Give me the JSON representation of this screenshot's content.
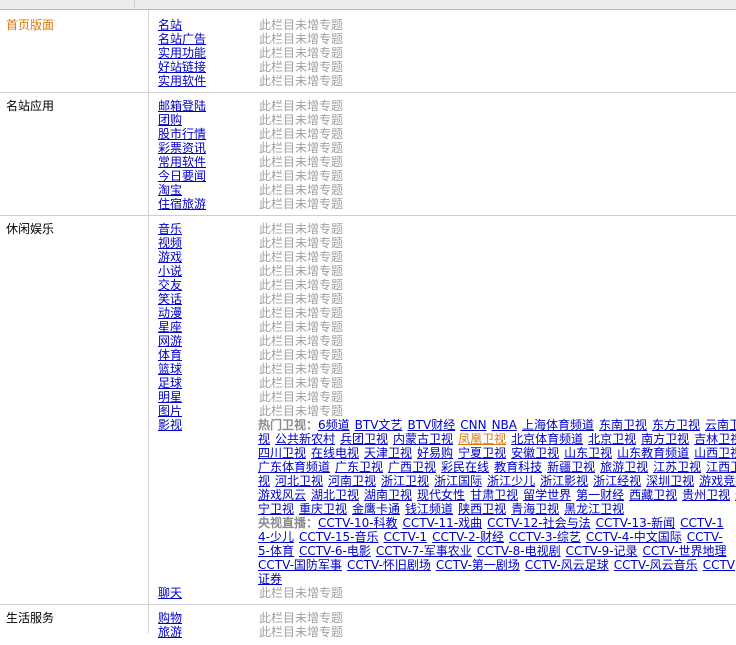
{
  "sections": [
    {
      "title": "首页版面",
      "links": [
        "名站",
        "名站广告",
        "实用功能",
        "好站链接",
        "实用软件"
      ],
      "status": "此栏目未增专题"
    },
    {
      "title": "名站应用",
      "links": [
        "邮箱登陆",
        "团购",
        "股市行情",
        "彩票资讯",
        "常用软件",
        "今日要闻",
        "淘宝",
        "住宿旅游"
      ],
      "status": "此栏目未增专题"
    },
    {
      "title": "休闲娱乐",
      "links": [
        "音乐",
        "视频",
        "游戏",
        "小说",
        "交友",
        "笑话",
        "动漫",
        "星座",
        "网游",
        "体育",
        "篮球",
        "足球",
        "明星",
        "图片",
        "影视"
      ],
      "status": "此栏目未增专题",
      "extra_link": "聊天",
      "extra_status": "此栏目未增专题"
    },
    {
      "title": "生活服务",
      "links": [
        "购物",
        "旅游"
      ],
      "status": "此栏目未增专题"
    }
  ],
  "tv_lines": [
    {
      "label": "热门卫视：",
      "links": [
        "6频道",
        "BTV文艺",
        "BTV财经",
        "CNN",
        "NBA",
        "上海体育频道",
        "东南卫视",
        "东方卫视",
        "云南卫"
      ]
    },
    {
      "label": "",
      "links": [
        "视",
        "公共新农村",
        "兵团卫视",
        "内蒙古卫视",
        "凤凰卫视",
        "北京体育频道",
        "北京卫视",
        "南方卫视",
        "吉林卫视"
      ]
    },
    {
      "label": "",
      "links": [
        "四川卫视",
        "在线电视",
        "天津卫视",
        "好易购",
        "宁夏卫视",
        "安徽卫视",
        "山东卫视",
        "山东教育频道",
        "山西卫视"
      ]
    },
    {
      "label": "",
      "links": [
        "广东体育频道",
        "广东卫视",
        "广西卫视",
        "彩民在线",
        "教育科技",
        "新疆卫视",
        "旅游卫视",
        "江苏卫视",
        "江西卫"
      ]
    },
    {
      "label": "",
      "links": [
        "视",
        "河北卫视",
        "河南卫视",
        "浙江卫视",
        "浙江国际",
        "浙江少儿",
        "浙江影视",
        "浙江经视",
        "深圳卫视",
        "游戏竞技"
      ]
    },
    {
      "label": "",
      "links": [
        "游戏风云",
        "湖北卫视",
        "湖南卫视",
        "现代女性",
        "甘肃卫视",
        "留学世界",
        "第一财经",
        "西藏卫视",
        "贵州卫视",
        "辽"
      ]
    },
    {
      "label": "",
      "links": [
        "宁卫视",
        "重庆卫视",
        "金鹰卡通",
        "钱江频道",
        "陕西卫视",
        "青海卫视",
        "黑龙江卫视"
      ]
    },
    {
      "label": "央视直播：",
      "links": [
        "CCTV-10-科教",
        "CCTV-11-戏曲",
        "CCTV-12-社会与法",
        "CCTV-13-新闻",
        "CCTV-1"
      ]
    },
    {
      "label": "",
      "links": [
        "4-少儿",
        "CCTV-15-音乐",
        "CCTV-1",
        "CCTV-2-财经",
        "CCTV-3-综艺",
        "CCTV-4-中文国际",
        "CCTV-"
      ]
    },
    {
      "label": "",
      "links": [
        "5-体育",
        "CCTV-6-电影",
        "CCTV-7-军事农业",
        "CCTV-8-电视剧",
        "CCTV-9-记录",
        "CCTV-世界地理"
      ]
    },
    {
      "label": "",
      "links": [
        "CCTV-国防军事",
        "CCTV-怀旧剧场",
        "CCTV-第一剧场",
        "CCTV-风云足球",
        "CCTV-风云音乐",
        "CCTV"
      ]
    },
    {
      "label": "",
      "links": [
        "证券"
      ]
    }
  ],
  "highlight_link": "凤凰卫视",
  "colors": {
    "section_title_active": "#d97a12",
    "link": "#0000cc",
    "status": "#a0a0a0"
  }
}
